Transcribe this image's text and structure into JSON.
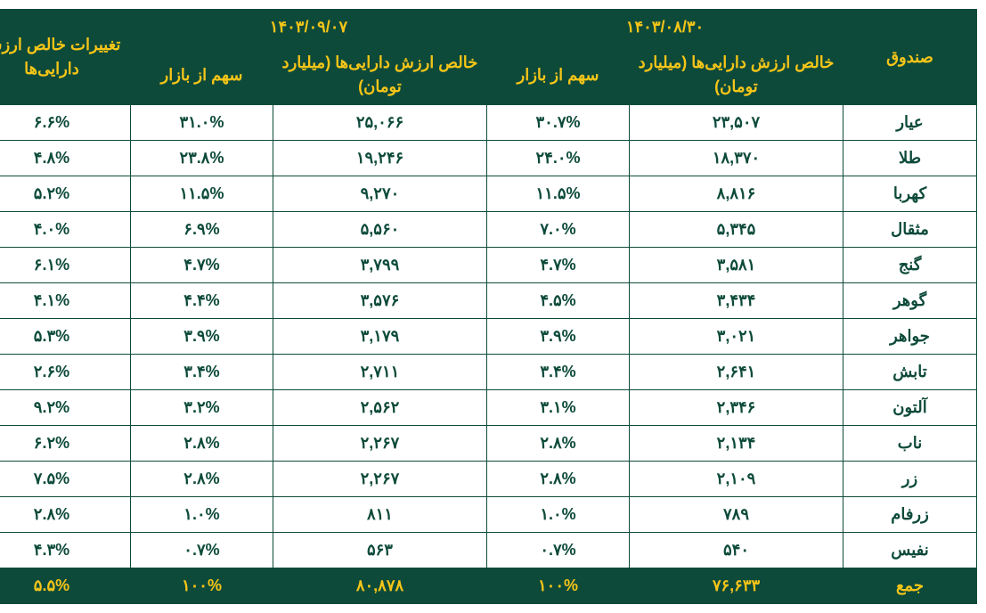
{
  "table": {
    "header": {
      "fund": "صندوق",
      "date1": "۱۴۰۳/۰۸/۳۰",
      "date2": "۱۴۰۳/۰۹/۰۷",
      "nav_label": "خالص ارزش دارایی‌ها (میلیارد تومان)",
      "share_label": "سهم از بازار",
      "change_label": "تغییرات خالص ارزش دارایی‌ها"
    },
    "rows": [
      {
        "fund": "عیار",
        "nav1": "۲۳,۵۰۷",
        "share1": "۳۰.۷%",
        "nav2": "۲۵,۰۶۶",
        "share2": "۳۱.۰%",
        "change": "۶.۶%"
      },
      {
        "fund": "طلا",
        "nav1": "۱۸,۳۷۰",
        "share1": "۲۴.۰%",
        "nav2": "۱۹,۲۴۶",
        "share2": "۲۳.۸%",
        "change": "۴.۸%"
      },
      {
        "fund": "کهربا",
        "nav1": "۸,۸۱۶",
        "share1": "۱۱.۵%",
        "nav2": "۹,۲۷۰",
        "share2": "۱۱.۵%",
        "change": "۵.۲%"
      },
      {
        "fund": "مثقال",
        "nav1": "۵,۳۴۵",
        "share1": "۷.۰%",
        "nav2": "۵,۵۶۰",
        "share2": "۶.۹%",
        "change": "۴.۰%"
      },
      {
        "fund": "گنج",
        "nav1": "۳,۵۸۱",
        "share1": "۴.۷%",
        "nav2": "۳,۷۹۹",
        "share2": "۴.۷%",
        "change": "۶.۱%"
      },
      {
        "fund": "گوهر",
        "nav1": "۳,۴۳۴",
        "share1": "۴.۵%",
        "nav2": "۳,۵۷۶",
        "share2": "۴.۴%",
        "change": "۴.۱%"
      },
      {
        "fund": "جواهر",
        "nav1": "۳,۰۲۱",
        "share1": "۳.۹%",
        "nav2": "۳,۱۷۹",
        "share2": "۳.۹%",
        "change": "۵.۳%"
      },
      {
        "fund": "تابش",
        "nav1": "۲,۶۴۱",
        "share1": "۳.۴%",
        "nav2": "۲,۷۱۱",
        "share2": "۳.۴%",
        "change": "۲.۶%"
      },
      {
        "fund": "آلتون",
        "nav1": "۲,۳۴۶",
        "share1": "۳.۱%",
        "nav2": "۲,۵۶۲",
        "share2": "۳.۲%",
        "change": "۹.۲%"
      },
      {
        "fund": "ناب",
        "nav1": "۲,۱۳۴",
        "share1": "۲.۸%",
        "nav2": "۲,۲۶۷",
        "share2": "۲.۸%",
        "change": "۶.۲%"
      },
      {
        "fund": "زر",
        "nav1": "۲,۱۰۹",
        "share1": "۲.۸%",
        "nav2": "۲,۲۶۷",
        "share2": "۲.۸%",
        "change": "۷.۵%"
      },
      {
        "fund": "زرفام",
        "nav1": "۷۸۹",
        "share1": "۱.۰%",
        "nav2": "۸۱۱",
        "share2": "۱.۰%",
        "change": "۲.۸%"
      },
      {
        "fund": "نفیس",
        "nav1": "۵۴۰",
        "share1": "۰.۷%",
        "nav2": "۵۶۳",
        "share2": "۰.۷%",
        "change": "۴.۳%"
      }
    ],
    "total": {
      "fund": "جمع",
      "nav1": "۷۶,۶۳۳",
      "share1": "۱۰۰%",
      "nav2": "۸۰,۸۷۸",
      "share2": "۱۰۰%",
      "change": "۵.۵%"
    },
    "colors": {
      "header_bg": "#0d4a3a",
      "header_fg": "#f5c518",
      "body_bg": "#ffffff",
      "body_fg": "#0d4a3a",
      "border": "#0d4a3a"
    },
    "fontsize": 18
  }
}
